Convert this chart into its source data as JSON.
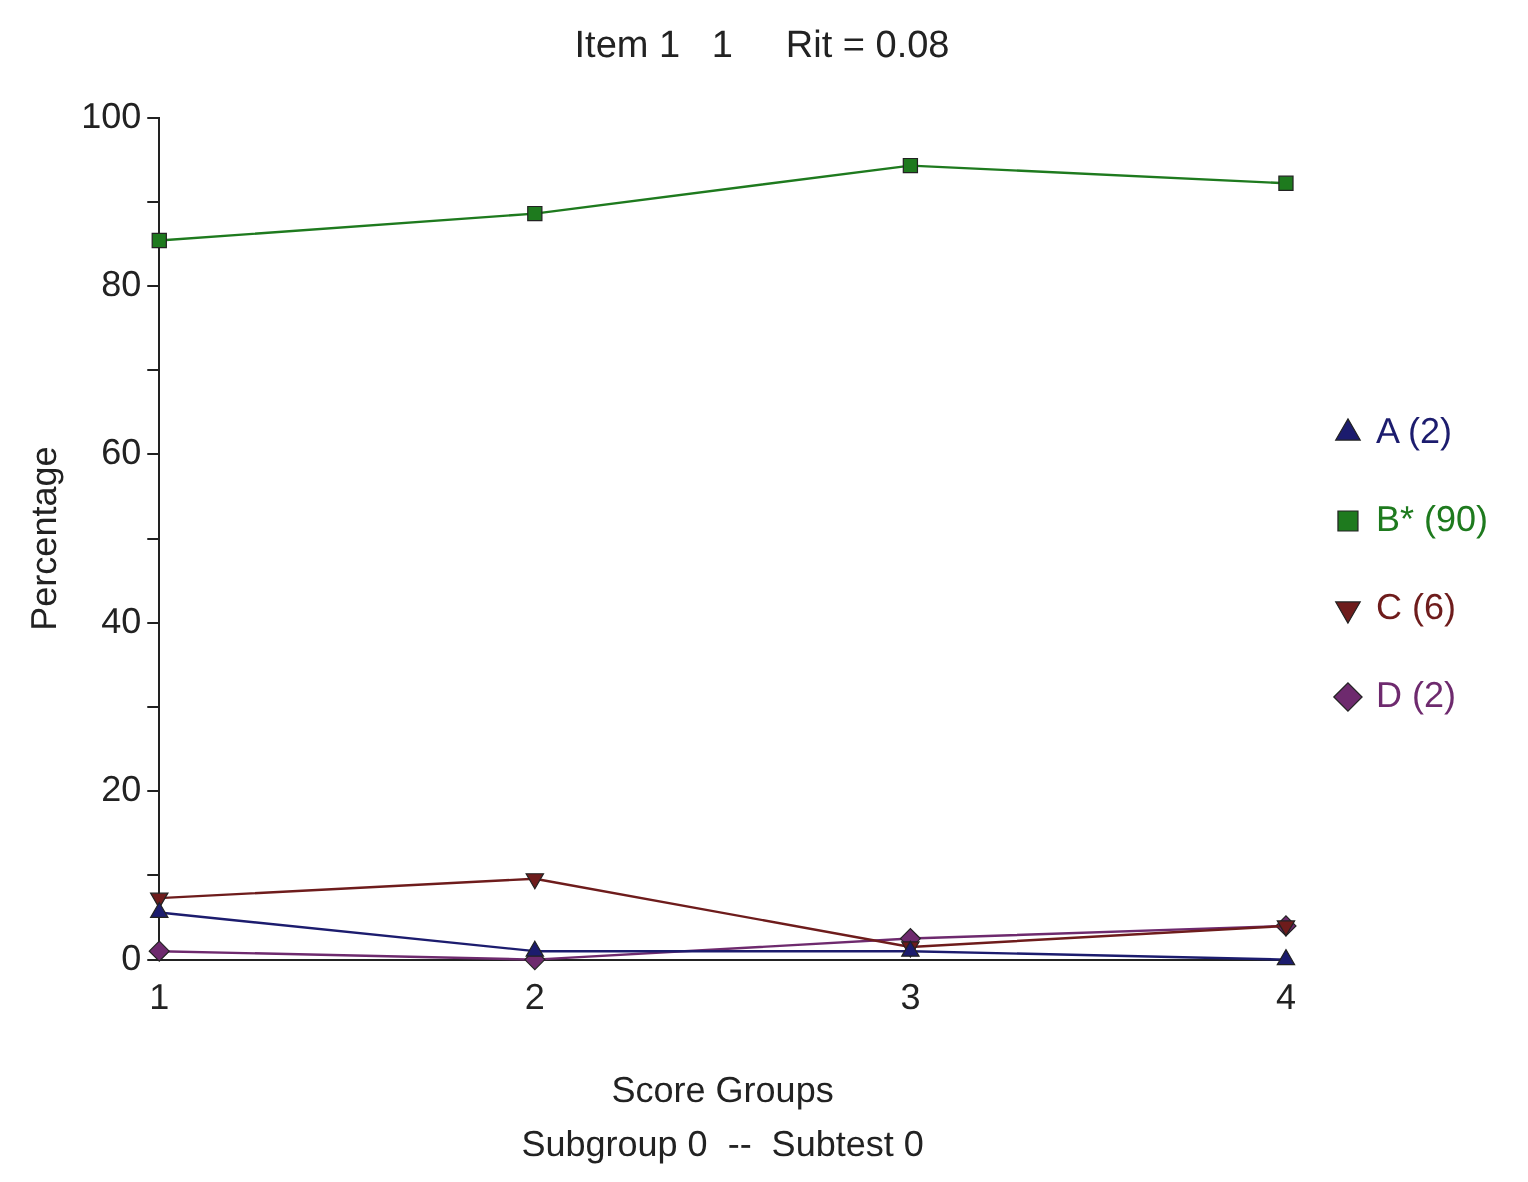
{
  "chart_data": {
    "type": "line",
    "title": "Item 1   1     Rit = 0.08",
    "xlabel": "Score Groups",
    "ylabel": "Percentage",
    "annotations": [
      "Subgroup 0  --  Subtest 0"
    ],
    "categories": [
      "1",
      "2",
      "3",
      "4"
    ],
    "ylim": [
      0,
      100
    ],
    "yticks": [
      0,
      {
        "value": 10,
        "label": null
      },
      20,
      {
        "value": 30,
        "label": null
      },
      40,
      {
        "value": 50,
        "label": null
      },
      60,
      {
        "value": 70,
        "label": null
      },
      80,
      {
        "value": 90,
        "label": null
      },
      100
    ],
    "grid": false,
    "legend": "right",
    "line_style": "solid",
    "series": [
      {
        "name": "A (2)",
        "color": "#1c1c6e",
        "marker": "triangle",
        "values": [
          5.6,
          1,
          1,
          0
        ]
      },
      {
        "name": "B* (90)",
        "color": "#1e7a1e",
        "marker": "square",
        "values": [
          85.4,
          88.6,
          94.3,
          92.2
        ]
      },
      {
        "name": "C (6)",
        "color": "#6e1c1c",
        "marker": "triangle-down",
        "values": [
          7.3,
          9.6,
          1.5,
          4
        ]
      },
      {
        "name": "D (2)",
        "color": "#6e2a6e",
        "marker": "diamond",
        "values": [
          1,
          0,
          2.5,
          4
        ]
      }
    ]
  }
}
